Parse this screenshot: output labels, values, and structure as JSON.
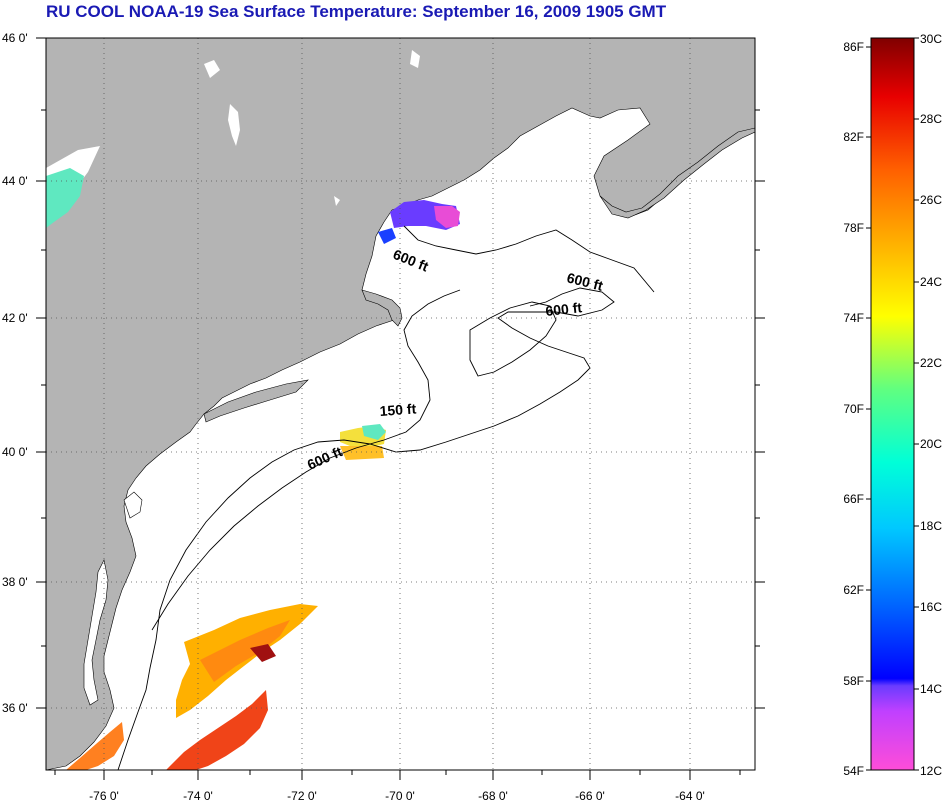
{
  "title": "RU COOL  NOAA-19  Sea Surface Temperature:  September 16, 2009 1905 GMT",
  "latitude_labels": [
    "46 0'",
    "44 0'",
    "42 0'",
    "40 0'",
    "38 0'",
    "36 0'"
  ],
  "longitude_labels": [
    "-76 0'",
    "-74 0'",
    "-72 0'",
    "-70 0'",
    "-68 0'",
    "-66 0'",
    "-64 0'"
  ],
  "contour_labels": [
    "600 ft",
    "600 ft",
    "600 ft",
    "150 ft",
    "600 ft"
  ],
  "colorbar": {
    "fahrenheit_labels": [
      "86F",
      "82F",
      "78F",
      "74F",
      "70F",
      "66F",
      "62F",
      "58F",
      "54F"
    ],
    "celsius_labels": [
      "30C",
      "28C",
      "26C",
      "24C",
      "22C",
      "20C",
      "18C",
      "16C",
      "14C",
      "12C"
    ]
  },
  "colors": {
    "land": "#b4b4b4",
    "ocean": "#ffffff",
    "title": "#1a1ab4",
    "gridline": "#555555"
  }
}
